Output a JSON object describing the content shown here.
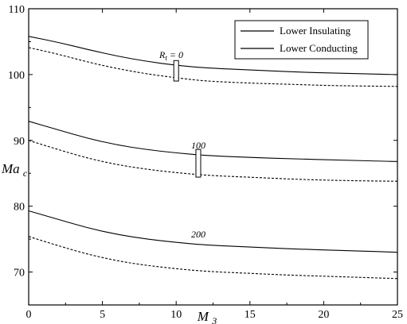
{
  "chart_data": {
    "type": "line",
    "xlabel": "M3",
    "ylabel": "Mac",
    "xlim": [
      0,
      25
    ],
    "ylim": [
      65,
      110
    ],
    "x_ticks": [
      "0",
      "5",
      "10",
      "15",
      "20",
      "25"
    ],
    "y_ticks": [
      "70",
      "80",
      "90",
      "100",
      "110"
    ],
    "grid": false,
    "legend_position": "top-right",
    "legend": [
      {
        "label": "Lower Insulating",
        "style": "solid"
      },
      {
        "label": "Lower Conducting",
        "style": "solid"
      }
    ],
    "curve_labels": [
      "R_t = 0",
      "100",
      "200"
    ],
    "series": [
      {
        "group": "R_t = 0",
        "style": "solid",
        "x": [
          0,
          2,
          4,
          6,
          8,
          10,
          12,
          15,
          18,
          21,
          25
        ],
        "y": [
          105.8,
          104.9,
          103.8,
          102.8,
          102.0,
          101.4,
          101.0,
          100.7,
          100.4,
          100.2,
          100.0
        ]
      },
      {
        "group": "R_t = 0",
        "style": "dashed",
        "x": [
          0,
          2,
          4,
          6,
          8,
          10,
          12,
          15,
          18,
          21,
          25
        ],
        "y": [
          104.1,
          103.1,
          101.9,
          100.9,
          100.1,
          99.5,
          99.0,
          98.7,
          98.5,
          98.3,
          98.2
        ]
      },
      {
        "group": "100",
        "style": "solid",
        "x": [
          0,
          2,
          4,
          6,
          8,
          10,
          12,
          15,
          18,
          21,
          25
        ],
        "y": [
          92.9,
          91.6,
          90.3,
          89.3,
          88.6,
          88.1,
          87.7,
          87.4,
          87.2,
          87.0,
          86.8
        ]
      },
      {
        "group": "100",
        "style": "dashed",
        "x": [
          0,
          2,
          4,
          6,
          8,
          10,
          12,
          15,
          18,
          21,
          25
        ],
        "y": [
          90.0,
          88.6,
          87.3,
          86.3,
          85.6,
          85.1,
          84.7,
          84.4,
          84.1,
          83.9,
          83.8
        ]
      },
      {
        "group": "200",
        "style": "solid",
        "x": [
          0,
          2,
          4,
          6,
          8,
          10,
          12,
          15,
          18,
          21,
          25
        ],
        "y": [
          79.3,
          78.0,
          76.7,
          75.7,
          75.0,
          74.5,
          74.1,
          73.8,
          73.5,
          73.3,
          73.0
        ]
      },
      {
        "group": "200",
        "style": "dashed",
        "x": [
          0,
          2,
          4,
          6,
          8,
          10,
          12,
          15,
          18,
          21,
          25
        ],
        "y": [
          75.4,
          74.0,
          72.7,
          71.7,
          71.0,
          70.5,
          70.1,
          69.8,
          69.5,
          69.3,
          69.0
        ]
      }
    ]
  }
}
